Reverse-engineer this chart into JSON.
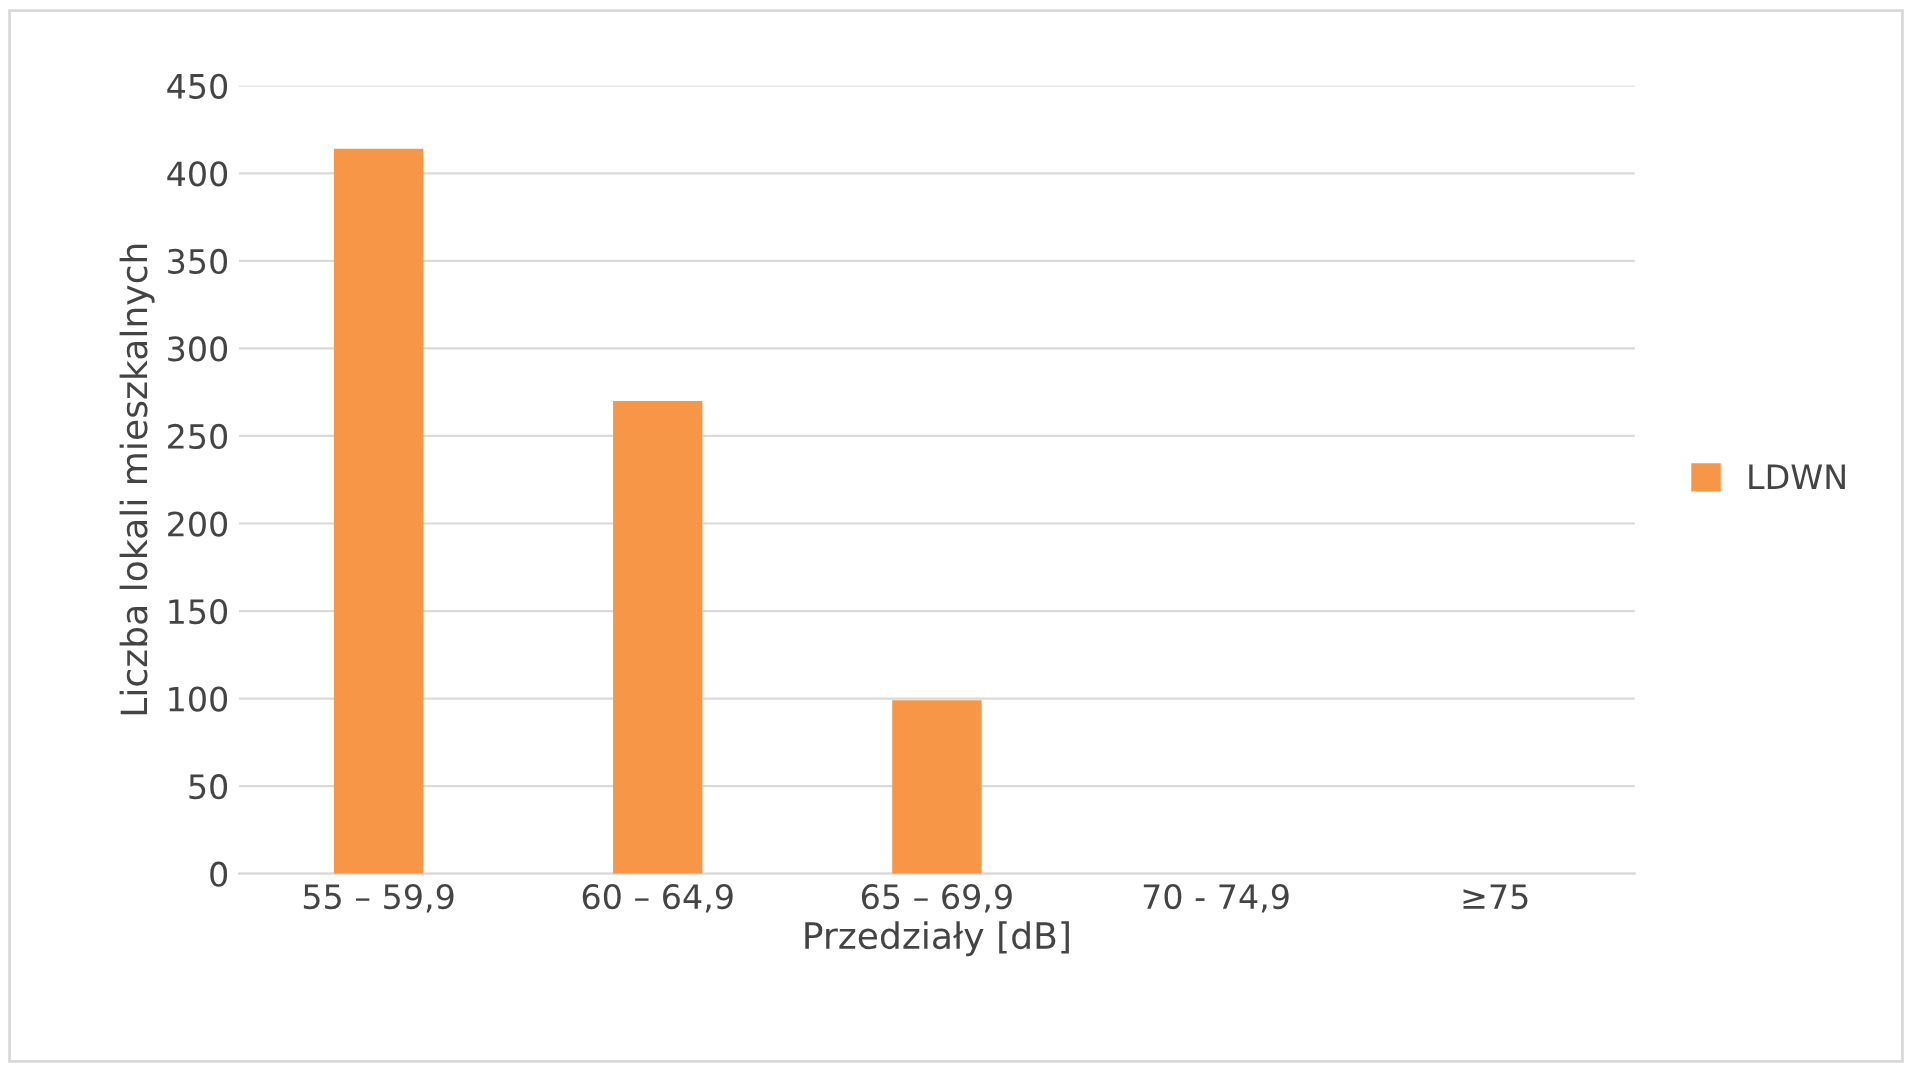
{
  "chart_data": {
    "type": "bar",
    "xlabel": "Przedziały [dB]",
    "ylabel": "Liczba lokali mieszkalnych",
    "categories": [
      "55 – 59,9",
      "60 – 64,9",
      "65 – 69,9",
      "70 - 74,9",
      "≥75"
    ],
    "series": [
      {
        "name": "LDWN",
        "color": "#f79646",
        "values": [
          414,
          270,
          99,
          0,
          0
        ]
      }
    ],
    "ylim": [
      0,
      450
    ],
    "yticks": [
      0,
      50,
      100,
      150,
      200,
      250,
      300,
      350,
      400,
      450
    ],
    "grid": "y",
    "legend": "right"
  }
}
